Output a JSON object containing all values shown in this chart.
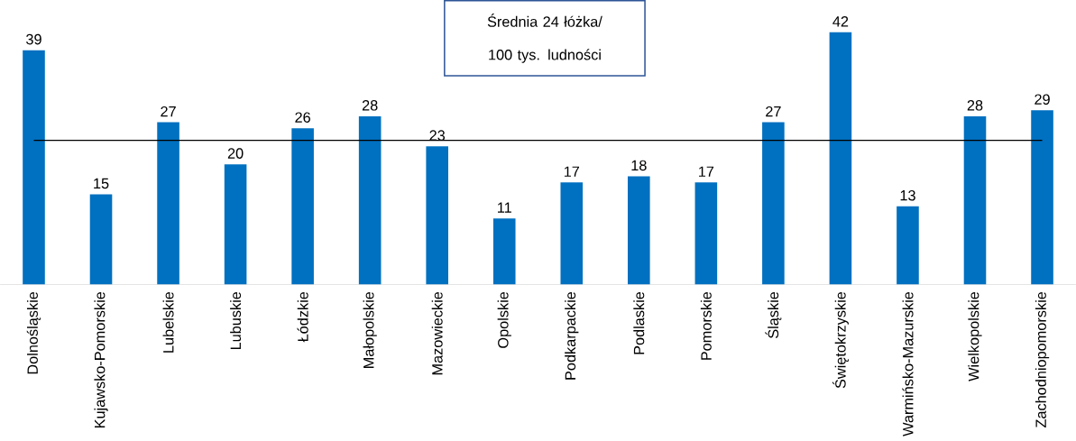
{
  "chart_data": {
    "type": "bar",
    "categories": [
      "Dolnośląskie",
      "Kujawsko-Pomorskie",
      "Lubelskie",
      "Lubuskie",
      "Łódzkie",
      "Małopolskie",
      "Mazowieckie",
      "Opolskie",
      "Podkarpackie",
      "Podlaskie",
      "Pomorskie",
      "Śląskie",
      "Świętokrzyskie",
      "Warmińsko-Mazurskie",
      "Wielkopolskie",
      "Zachodniopomorskie"
    ],
    "values": [
      39,
      15,
      27,
      20,
      26,
      28,
      23,
      11,
      17,
      18,
      17,
      27,
      42,
      13,
      28,
      29
    ],
    "color": "#0070c0",
    "ylim": [
      0,
      47
    ],
    "data_labels": true,
    "ref_lines": [
      {
        "axis": "y",
        "value": 24,
        "label": "Średnia 24 łóżka/ 100 tys. ludności",
        "color": "#000000"
      }
    ]
  }
}
